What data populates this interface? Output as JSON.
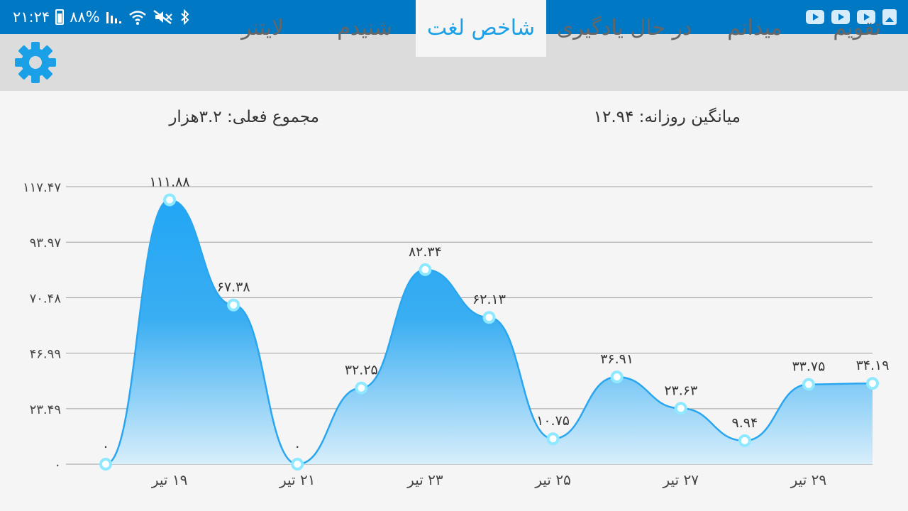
{
  "status_bar": {
    "time": "۲۱:۲۴",
    "battery": "۸۸%"
  },
  "tabs": [
    {
      "label": "تقویم",
      "active": false
    },
    {
      "label": "میدانم",
      "active": false
    },
    {
      "label": "در حال یادگیری",
      "active": false
    },
    {
      "label": "شاخص لغت",
      "active": true
    },
    {
      "label": "شنیدم",
      "active": false
    },
    {
      "label": "لایتنر",
      "active": false
    }
  ],
  "summary": {
    "daily_average": "میانگین روزانه: ۱۲.۹۴",
    "current_total": "مجموع فعلی: ۳.۲هزار"
  },
  "colors": {
    "status_bar": "#0178c4",
    "accent": "#1aa0e6",
    "line": "#2aa6f0",
    "marker": "#8ee8ff"
  },
  "chart_data": {
    "type": "area",
    "x": [
      18,
      19,
      20,
      21,
      22,
      23,
      24,
      25,
      26,
      27,
      28,
      29,
      30
    ],
    "values": [
      0,
      111.88,
      67.38,
      0,
      32.25,
      82.34,
      62.13,
      10.75,
      36.91,
      23.63,
      9.94,
      33.75,
      34.19
    ],
    "data_labels": [
      "۰",
      "۱۱۱.۸۸",
      "۶۷.۳۸",
      "۰",
      "۳۲.۲۵",
      "۸۲.۳۴",
      "۶۲.۱۳",
      "۱۰.۷۵",
      "۳۶.۹۱",
      "۲۳.۶۳",
      "۹.۹۴",
      "۳۳.۷۵",
      "۳۴.۱۹"
    ],
    "x_ticks": [
      {
        "x": 19,
        "label": "۱۹ تیر"
      },
      {
        "x": 21,
        "label": "۲۱ تیر"
      },
      {
        "x": 23,
        "label": "۲۳ تیر"
      },
      {
        "x": 25,
        "label": "۲۵ تیر"
      },
      {
        "x": 27,
        "label": "۲۷ تیر"
      },
      {
        "x": 29,
        "label": "۲۹ تیر"
      }
    ],
    "y_ticks": [
      {
        "value": 0,
        "label": "۰"
      },
      {
        "value": 23.49,
        "label": "۲۳.۴۹"
      },
      {
        "value": 46.99,
        "label": "۴۶.۹۹"
      },
      {
        "value": 70.48,
        "label": "۷۰.۴۸"
      },
      {
        "value": 93.97,
        "label": "۹۳.۹۷"
      },
      {
        "value": 117.47,
        "label": "۱۱۷.۴۷"
      }
    ],
    "ylim": [
      0,
      117.47
    ],
    "xlim": [
      18,
      30
    ],
    "grid": true
  }
}
